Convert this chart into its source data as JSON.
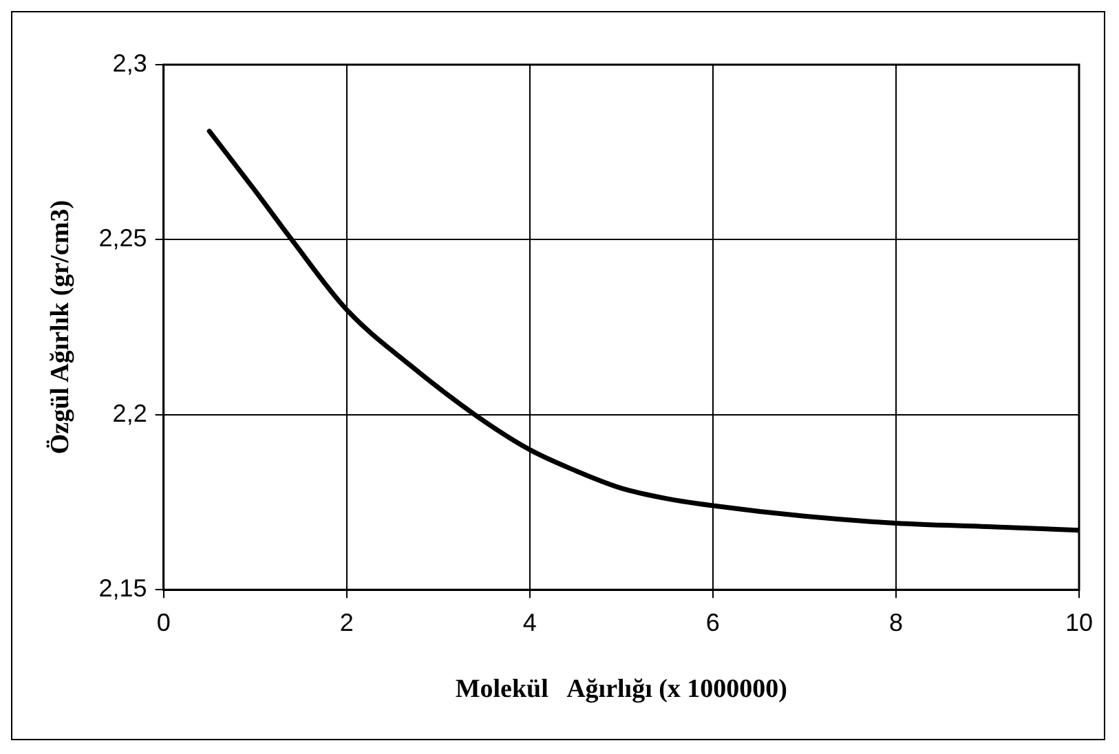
{
  "chart_data": {
    "type": "line",
    "xlabel": "Molekül   Ağırlığı (x 1000000)",
    "ylabel": "Özgül Ağırlık (gr/cm3)",
    "x": [
      0.5,
      1,
      1.4,
      2,
      2.7,
      3.4,
      4,
      4.5,
      5,
      5.5,
      6,
      7,
      8,
      9,
      10
    ],
    "series": [
      {
        "color": "#000000",
        "values": [
          2.281,
          2.264,
          2.25,
          2.23,
          2.214,
          2.2,
          2.19,
          2.184,
          2.179,
          2.176,
          2.174,
          2.171,
          2.169,
          2.168,
          2.167
        ]
      }
    ],
    "xlim": [
      0,
      10
    ],
    "xticks": [
      0,
      2,
      4,
      6,
      8,
      10
    ],
    "ylim": [
      2.15,
      2.3
    ],
    "yticks": [
      {
        "value": 2.15,
        "label": "2,15"
      },
      {
        "value": 2.2,
        "label": "2,2"
      },
      {
        "value": 2.25,
        "label": "2,25"
      },
      {
        "value": 2.3,
        "label": "2,3"
      }
    ],
    "grid": true,
    "legend": false,
    "marker": "none",
    "line_style": "solid"
  }
}
